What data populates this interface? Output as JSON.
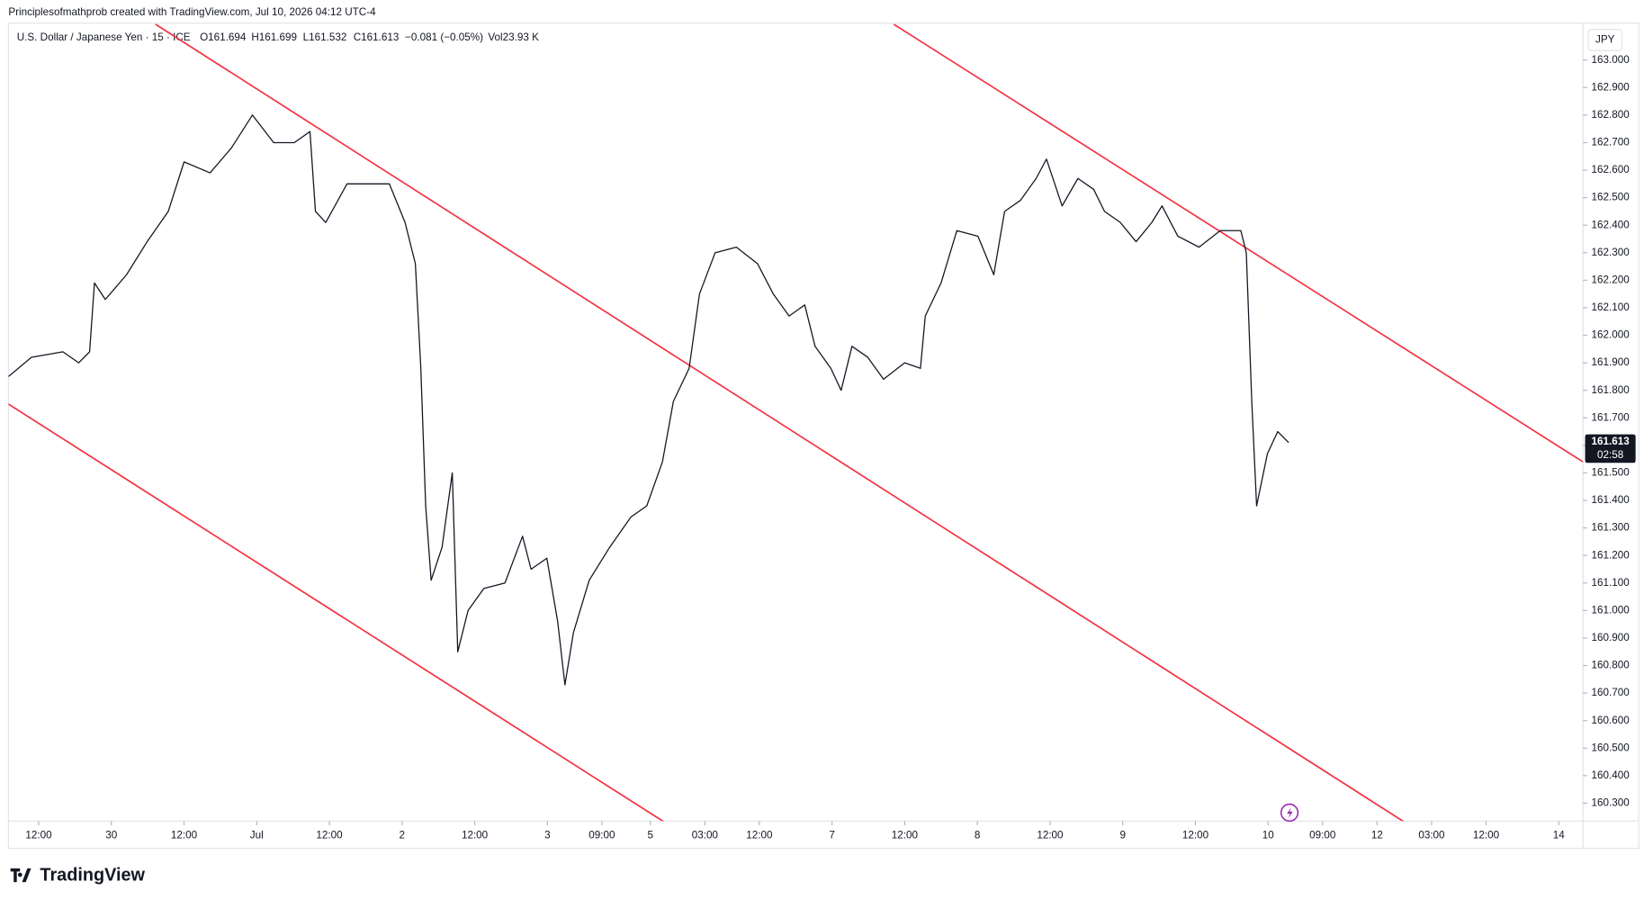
{
  "header": {
    "credit": "Principlesofmathprob created with TradingView.com, Jul 10, 2026 04:12 UTC-4",
    "symbol": "U.S. Dollar / Japanese Yen · 15 · ICE",
    "open": "O161.694",
    "high": "H161.699",
    "low": "L161.532",
    "close": "C161.613",
    "change": "−0.081 (−0.05%)",
    "volume": "Vol23.93 K",
    "currency": "JPY"
  },
  "footer": {
    "logo": "TradingView"
  },
  "chart_data": {
    "type": "line",
    "x": [
      0,
      3.8,
      9.0,
      11.6,
      13.4,
      14.2,
      16.0,
      19.5,
      22.9,
      26.4,
      29.0,
      33.3,
      36.8,
      40.3,
      43.8,
      47.2,
      49.8,
      50.7,
      52.4,
      55.9,
      59.4,
      62.9,
      65.5,
      67.2,
      68.1,
      68.9,
      69.8,
      71.6,
      73.3,
      74.2,
      75.9,
      78.5,
      82.0,
      84.9,
      86.3,
      88.9,
      90.7,
      91.9,
      93.3,
      95.9,
      99.3,
      102.8,
      105.4,
      108.0,
      109.8,
      112.4,
      114.1,
      116.7,
      120.2,
      123.7,
      126.3,
      128.9,
      131.5,
      133.2,
      135.8,
      137.5,
      139.3,
      141.9,
      144.5,
      148.0,
      150.6,
      151.4,
      154.0,
      156.6,
      160.1,
      162.7,
      164.5,
      167.1,
      169.7,
      171.4,
      174.0,
      176.6,
      179.2,
      181.0,
      183.6,
      186.2,
      188.8,
      190.5,
      193.1,
      196.6,
      200.1,
      203.5,
      204.4,
      205.3,
      206.1,
      207.9,
      209.6,
      211.4
    ],
    "series": [
      {
        "name": "USDJPY",
        "color": "#131722",
        "values": [
          161.85,
          161.92,
          161.94,
          161.9,
          161.94,
          162.19,
          162.13,
          162.22,
          162.34,
          162.45,
          162.63,
          162.59,
          162.68,
          162.8,
          162.7,
          162.7,
          162.74,
          162.45,
          162.41,
          162.55,
          162.55,
          162.55,
          162.41,
          162.26,
          161.88,
          161.38,
          161.11,
          161.23,
          161.5,
          160.85,
          161.0,
          161.08,
          161.1,
          161.27,
          161.15,
          161.19,
          160.96,
          160.73,
          160.92,
          161.11,
          161.23,
          161.34,
          161.38,
          161.54,
          161.76,
          161.88,
          162.15,
          162.3,
          162.32,
          162.26,
          162.15,
          162.07,
          162.11,
          161.96,
          161.88,
          161.8,
          161.96,
          161.92,
          161.84,
          161.9,
          161.88,
          162.07,
          162.19,
          162.38,
          162.36,
          162.22,
          162.45,
          162.49,
          162.57,
          162.64,
          162.47,
          162.57,
          162.53,
          162.45,
          162.41,
          162.34,
          162.41,
          162.47,
          162.36,
          162.32,
          162.38,
          162.38,
          162.3,
          161.76,
          161.38,
          161.57,
          161.65,
          161.61
        ]
      }
    ],
    "trendlines": [
      {
        "color": "#f23645",
        "x": [
          0,
          108.4
        ],
        "y": [
          161.75,
          160.23
        ]
      },
      {
        "color": "#f23645",
        "x": [
          24.3,
          230.6
        ],
        "y": [
          163.13,
          160.23
        ]
      },
      {
        "color": "#f23645",
        "x": [
          146.2,
          260
        ],
        "y": [
          163.13,
          161.54
        ]
      }
    ],
    "price_tag": {
      "value": 161.613,
      "label": "161.613",
      "countdown": "02:58",
      "color": "#131722"
    },
    "xlim": [
      0,
      260
    ],
    "ylim": [
      160.235,
      163.134
    ],
    "xticks": [
      {
        "value": 5,
        "label": "12:00"
      },
      {
        "value": 17,
        "label": "30"
      },
      {
        "value": 29,
        "label": "12:00"
      },
      {
        "value": 41,
        "label": "Jul"
      },
      {
        "value": 53,
        "label": "12:00"
      },
      {
        "value": 65,
        "label": "2"
      },
      {
        "value": 77,
        "label": "12:00"
      },
      {
        "value": 89,
        "label": "3"
      },
      {
        "value": 98,
        "label": "09:00"
      },
      {
        "value": 106,
        "label": "5"
      },
      {
        "value": 115,
        "label": "03:00"
      },
      {
        "value": 124,
        "label": "12:00"
      },
      {
        "value": 136,
        "label": "7"
      },
      {
        "value": 148,
        "label": "12:00"
      },
      {
        "value": 160,
        "label": "8"
      },
      {
        "value": 172,
        "label": "12:00"
      },
      {
        "value": 184,
        "label": "9"
      },
      {
        "value": 196,
        "label": "12:00"
      },
      {
        "value": 208,
        "label": "10"
      },
      {
        "value": 217,
        "label": "09:00"
      },
      {
        "value": 226,
        "label": "12"
      },
      {
        "value": 235,
        "label": "03:00"
      },
      {
        "value": 244,
        "label": "12:00"
      },
      {
        "value": 256,
        "label": "14"
      }
    ],
    "yticks": [
      {
        "value": 160.3,
        "label": "160.300"
      },
      {
        "value": 160.4,
        "label": "160.400"
      },
      {
        "value": 160.5,
        "label": "160.500"
      },
      {
        "value": 160.6,
        "label": "160.600"
      },
      {
        "value": 160.7,
        "label": "160.700"
      },
      {
        "value": 160.8,
        "label": "160.800"
      },
      {
        "value": 160.9,
        "label": "160.900"
      },
      {
        "value": 161.0,
        "label": "161.000"
      },
      {
        "value": 161.1,
        "label": "161.100"
      },
      {
        "value": 161.2,
        "label": "161.200"
      },
      {
        "value": 161.3,
        "label": "161.300"
      },
      {
        "value": 161.4,
        "label": "161.400"
      },
      {
        "value": 161.5,
        "label": "161.500"
      },
      {
        "value": 161.6,
        "label": "161.600"
      },
      {
        "value": 161.7,
        "label": "161.700"
      },
      {
        "value": 161.8,
        "label": "161.800"
      },
      {
        "value": 161.9,
        "label": "161.900"
      },
      {
        "value": 162.0,
        "label": "162.000"
      },
      {
        "value": 162.1,
        "label": "162.100"
      },
      {
        "value": 162.2,
        "label": "162.200"
      },
      {
        "value": 162.3,
        "label": "162.300"
      },
      {
        "value": 162.4,
        "label": "162.400"
      },
      {
        "value": 162.5,
        "label": "162.500"
      },
      {
        "value": 162.6,
        "label": "162.600"
      },
      {
        "value": 162.7,
        "label": "162.700"
      },
      {
        "value": 162.8,
        "label": "162.800"
      },
      {
        "value": 162.9,
        "label": "162.900"
      },
      {
        "value": 163.0,
        "label": "163.000"
      }
    ]
  }
}
